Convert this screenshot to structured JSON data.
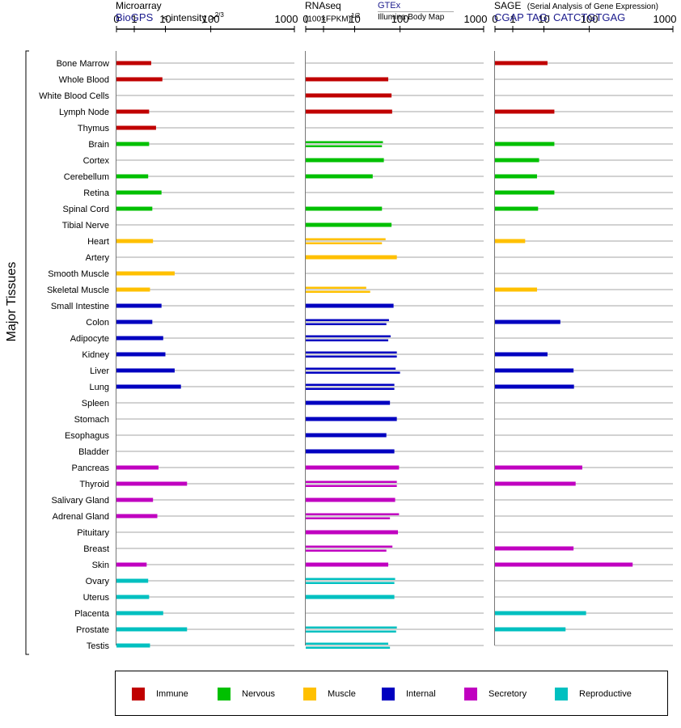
{
  "chart_data": {
    "type": "bar",
    "axis_label": "Major Tissues",
    "ticks": [
      "0",
      "1",
      "10",
      "100",
      "1000"
    ],
    "panels": [
      {
        "id": "microarray",
        "title": "Microarray",
        "source": "BioGPS",
        "unit": "< intensity >",
        "unit_exponent": "2/3",
        "values": [
          {
            "tissue": "Bone Marrow",
            "category": "Immune",
            "v": [
              3.5
            ]
          },
          {
            "tissue": "Whole Blood",
            "category": "Immune",
            "v": [
              8
            ]
          },
          {
            "tissue": "White Blood Cells",
            "category": "Immune",
            "v": []
          },
          {
            "tissue": "Lymph Node",
            "category": "Immune",
            "v": [
              3
            ]
          },
          {
            "tissue": "Thymus",
            "category": "Immune",
            "v": [
              5
            ]
          },
          {
            "tissue": "Brain",
            "category": "Nervous",
            "v": [
              3
            ]
          },
          {
            "tissue": "Cortex",
            "category": "Nervous",
            "v": []
          },
          {
            "tissue": "Cerebellum",
            "category": "Nervous",
            "v": [
              2.8
            ]
          },
          {
            "tissue": "Retina",
            "category": "Nervous",
            "v": [
              7.5
            ]
          },
          {
            "tissue": "Spinal Cord",
            "category": "Nervous",
            "v": [
              3.8
            ]
          },
          {
            "tissue": "Tibial Nerve",
            "category": "Nervous",
            "v": []
          },
          {
            "tissue": "Heart",
            "category": "Muscle",
            "v": [
              4
            ]
          },
          {
            "tissue": "Artery",
            "category": "Muscle",
            "v": []
          },
          {
            "tissue": "Smooth Muscle",
            "category": "Muscle",
            "v": [
              16
            ]
          },
          {
            "tissue": "Skeletal Muscle",
            "category": "Muscle",
            "v": [
              3.2
            ]
          },
          {
            "tissue": "Small Intestine",
            "category": "Internal",
            "v": [
              7.5
            ]
          },
          {
            "tissue": "Colon",
            "category": "Internal",
            "v": [
              3.8
            ]
          },
          {
            "tissue": "Adipocyte",
            "category": "Internal",
            "v": [
              8.5
            ]
          },
          {
            "tissue": "Kidney",
            "category": "Internal",
            "v": [
              10
            ]
          },
          {
            "tissue": "Liver",
            "category": "Internal",
            "v": [
              16
            ]
          },
          {
            "tissue": "Lung",
            "category": "Internal",
            "v": [
              22
            ]
          },
          {
            "tissue": "Spleen",
            "category": "Internal",
            "v": []
          },
          {
            "tissue": "Stomach",
            "category": "Internal",
            "v": []
          },
          {
            "tissue": "Esophagus",
            "category": "Internal",
            "v": []
          },
          {
            "tissue": "Bladder",
            "category": "Internal",
            "v": []
          },
          {
            "tissue": "Pancreas",
            "category": "Secretory",
            "v": [
              6
            ]
          },
          {
            "tissue": "Thyroid",
            "category": "Secretory",
            "v": [
              30
            ]
          },
          {
            "tissue": "Salivary Gland",
            "category": "Secretory",
            "v": [
              4
            ]
          },
          {
            "tissue": "Adrenal Gland",
            "category": "Secretory",
            "v": [
              5.5
            ]
          },
          {
            "tissue": "Pituitary",
            "category": "Secretory",
            "v": []
          },
          {
            "tissue": "Breast",
            "category": "Secretory",
            "v": []
          },
          {
            "tissue": "Skin",
            "category": "Secretory",
            "v": [
              2.5
            ]
          },
          {
            "tissue": "Ovary",
            "category": "Reproductive",
            "v": [
              2.8
            ]
          },
          {
            "tissue": "Uterus",
            "category": "Reproductive",
            "v": [
              3
            ]
          },
          {
            "tissue": "Placenta",
            "category": "Reproductive",
            "v": [
              8.5
            ]
          },
          {
            "tissue": "Prostate",
            "category": "Reproductive",
            "v": [
              30
            ]
          },
          {
            "tissue": "Testis",
            "category": "Reproductive",
            "v": [
              3.2
            ]
          }
        ]
      },
      {
        "id": "rnaseq",
        "title": "RNAseq",
        "unit": "(100×FPKM)",
        "unit_exponent": "1/2",
        "source": "GTEx",
        "source2": "Illumina Body Map",
        "values": [
          {
            "tissue": "Bone Marrow",
            "category": "Immune",
            "v": []
          },
          {
            "tissue": "Whole Blood",
            "category": "Immune",
            "v": [
              55
            ]
          },
          {
            "tissue": "White Blood Cells",
            "category": "Immune",
            "v": [
              65
            ]
          },
          {
            "tissue": "Lymph Node",
            "category": "Immune",
            "v": [
              67
            ]
          },
          {
            "tissue": "Thymus",
            "category": "Immune",
            "v": []
          },
          {
            "tissue": "Brain",
            "category": "Nervous",
            "v": [
              42,
              40
            ]
          },
          {
            "tissue": "Cortex",
            "category": "Nervous",
            "v": [
              44
            ]
          },
          {
            "tissue": "Cerebellum",
            "category": "Nervous",
            "v": [
              25
            ]
          },
          {
            "tissue": "Retina",
            "category": "Nervous",
            "v": []
          },
          {
            "tissue": "Spinal Cord",
            "category": "Nervous",
            "v": [
              40
            ]
          },
          {
            "tissue": "Tibial Nerve",
            "category": "Nervous",
            "v": [
              65
            ]
          },
          {
            "tissue": "Heart",
            "category": "Muscle",
            "v": [
              48,
              40
            ]
          },
          {
            "tissue": "Artery",
            "category": "Muscle",
            "v": [
              85
            ]
          },
          {
            "tissue": "Smooth Muscle",
            "category": "Muscle",
            "v": []
          },
          {
            "tissue": "Skeletal Muscle",
            "category": "Muscle",
            "v": [
              18,
              22
            ]
          },
          {
            "tissue": "Small Intestine",
            "category": "Internal",
            "v": [
              72
            ]
          },
          {
            "tissue": "Colon",
            "category": "Internal",
            "v": [
              57,
              50
            ]
          },
          {
            "tissue": "Adipocyte",
            "category": "Internal",
            "v": [
              62,
              55
            ]
          },
          {
            "tissue": "Kidney",
            "category": "Internal",
            "v": [
              85,
              85
            ]
          },
          {
            "tissue": "Liver",
            "category": "Internal",
            "v": [
              80,
              100
            ]
          },
          {
            "tissue": "Lung",
            "category": "Internal",
            "v": [
              75,
              75
            ]
          },
          {
            "tissue": "Spleen",
            "category": "Internal",
            "v": [
              60
            ]
          },
          {
            "tissue": "Stomach",
            "category": "Internal",
            "v": [
              85
            ]
          },
          {
            "tissue": "Esophagus",
            "category": "Internal",
            "v": [
              50
            ]
          },
          {
            "tissue": "Bladder",
            "category": "Internal",
            "v": [
              75
            ]
          },
          {
            "tissue": "Pancreas",
            "category": "Secretory",
            "v": [
              95
            ]
          },
          {
            "tissue": "Thyroid",
            "category": "Secretory",
            "v": [
              85,
              85
            ]
          },
          {
            "tissue": "Salivary Gland",
            "category": "Secretory",
            "v": [
              78
            ]
          },
          {
            "tissue": "Adrenal Gland",
            "category": "Secretory",
            "v": [
              95,
              60
            ]
          },
          {
            "tissue": "Pituitary",
            "category": "Secretory",
            "v": [
              90
            ]
          },
          {
            "tissue": "Breast",
            "category": "Secretory",
            "v": [
              68,
              50
            ]
          },
          {
            "tissue": "Skin",
            "category": "Secretory",
            "v": [
              55
            ]
          },
          {
            "tissue": "Ovary",
            "category": "Reproductive",
            "v": [
              78,
              75
            ]
          },
          {
            "tissue": "Uterus",
            "category": "Reproductive",
            "v": [
              75
            ]
          },
          {
            "tissue": "Placenta",
            "category": "Reproductive",
            "v": []
          },
          {
            "tissue": "Prostate",
            "category": "Reproductive",
            "v": [
              85,
              82
            ]
          },
          {
            "tissue": "Testis",
            "category": "Reproductive",
            "v": [
              55,
              60
            ]
          }
        ]
      },
      {
        "id": "sage",
        "title": "SAGE",
        "subtitle": "(Serial Analysis of Gene Expression)",
        "source": "CGAP TAG: CATCTGTGAG",
        "values": [
          {
            "tissue": "Bone Marrow",
            "category": "Immune",
            "v": [
              12
            ]
          },
          {
            "tissue": "Whole Blood",
            "category": "Immune",
            "v": []
          },
          {
            "tissue": "White Blood Cells",
            "category": "Immune",
            "v": []
          },
          {
            "tissue": "Lymph Node",
            "category": "Immune",
            "v": [
              17
            ]
          },
          {
            "tissue": "Thymus",
            "category": "Immune",
            "v": []
          },
          {
            "tissue": "Brain",
            "category": "Nervous",
            "v": [
              17
            ]
          },
          {
            "tissue": "Cortex",
            "category": "Nervous",
            "v": [
              7
            ]
          },
          {
            "tissue": "Cerebellum",
            "category": "Nervous",
            "v": [
              6
            ]
          },
          {
            "tissue": "Retina",
            "category": "Nervous",
            "v": [
              17
            ]
          },
          {
            "tissue": "Spinal Cord",
            "category": "Nervous",
            "v": [
              6.5
            ]
          },
          {
            "tissue": "Tibial Nerve",
            "category": "Nervous",
            "v": []
          },
          {
            "tissue": "Heart",
            "category": "Muscle",
            "v": [
              2.5
            ]
          },
          {
            "tissue": "Artery",
            "category": "Muscle",
            "v": []
          },
          {
            "tissue": "Smooth Muscle",
            "category": "Muscle",
            "v": []
          },
          {
            "tissue": "Skeletal Muscle",
            "category": "Muscle",
            "v": [
              6
            ]
          },
          {
            "tissue": "Small Intestine",
            "category": "Internal",
            "v": []
          },
          {
            "tissue": "Colon",
            "category": "Internal",
            "v": [
              23
            ]
          },
          {
            "tissue": "Adipocyte",
            "category": "Internal",
            "v": []
          },
          {
            "tissue": "Kidney",
            "category": "Internal",
            "v": [
              12
            ]
          },
          {
            "tissue": "Liver",
            "category": "Internal",
            "v": [
              45
            ]
          },
          {
            "tissue": "Lung",
            "category": "Internal",
            "v": [
              46
            ]
          },
          {
            "tissue": "Spleen",
            "category": "Internal",
            "v": []
          },
          {
            "tissue": "Stomach",
            "category": "Internal",
            "v": []
          },
          {
            "tissue": "Esophagus",
            "category": "Internal",
            "v": []
          },
          {
            "tissue": "Bladder",
            "category": "Internal",
            "v": []
          },
          {
            "tissue": "Pancreas",
            "category": "Secretory",
            "v": [
              70
            ]
          },
          {
            "tissue": "Thyroid",
            "category": "Secretory",
            "v": [
              50
            ]
          },
          {
            "tissue": "Salivary Gland",
            "category": "Secretory",
            "v": []
          },
          {
            "tissue": "Adrenal Gland",
            "category": "Secretory",
            "v": []
          },
          {
            "tissue": "Pituitary",
            "category": "Secretory",
            "v": []
          },
          {
            "tissue": "Breast",
            "category": "Secretory",
            "v": [
              45
            ]
          },
          {
            "tissue": "Skin",
            "category": "Secretory",
            "v": [
              330
            ]
          },
          {
            "tissue": "Ovary",
            "category": "Reproductive",
            "v": []
          },
          {
            "tissue": "Uterus",
            "category": "Reproductive",
            "v": []
          },
          {
            "tissue": "Placenta",
            "category": "Reproductive",
            "v": [
              85
            ]
          },
          {
            "tissue": "Prostate",
            "category": "Reproductive",
            "v": [
              30
            ]
          },
          {
            "tissue": "Testis",
            "category": "Reproductive",
            "v": []
          }
        ]
      }
    ],
    "legend": [
      {
        "name": "Immune",
        "color": "#c00000"
      },
      {
        "name": "Nervous",
        "color": "#00c000"
      },
      {
        "name": "Muscle",
        "color": "#ffc000"
      },
      {
        "name": "Internal",
        "color": "#0000c0"
      },
      {
        "name": "Secretory",
        "color": "#c000c0"
      },
      {
        "name": "Reproductive",
        "color": "#00c0c0"
      }
    ]
  }
}
